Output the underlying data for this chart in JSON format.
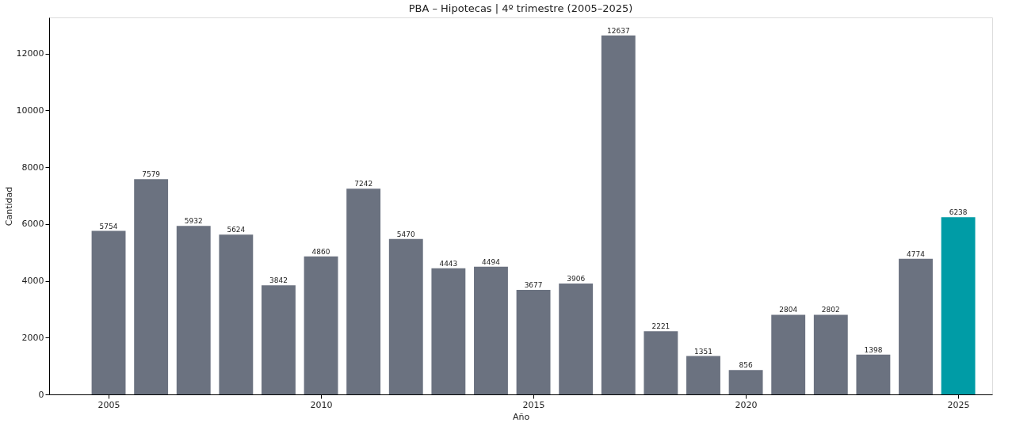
{
  "chart_data": {
    "type": "bar",
    "title": "PBA – Hipotecas | 4º trimestre (2005–2025)",
    "xlabel": "Año",
    "ylabel": "Cantidad",
    "x": [
      2005,
      2006,
      2007,
      2008,
      2009,
      2010,
      2011,
      2012,
      2013,
      2014,
      2015,
      2016,
      2017,
      2018,
      2019,
      2020,
      2021,
      2022,
      2023,
      2024,
      2025
    ],
    "values": [
      5754,
      7579,
      5932,
      5624,
      3842,
      4860,
      7242,
      5470,
      4443,
      4494,
      3677,
      3906,
      12637,
      2221,
      1351,
      856,
      2804,
      2802,
      1398,
      4774,
      6238
    ],
    "colors": [
      "#6b7280",
      "#6b7280",
      "#6b7280",
      "#6b7280",
      "#6b7280",
      "#6b7280",
      "#6b7280",
      "#6b7280",
      "#6b7280",
      "#6b7280",
      "#6b7280",
      "#6b7280",
      "#6b7280",
      "#6b7280",
      "#6b7280",
      "#6b7280",
      "#6b7280",
      "#6b7280",
      "#6b7280",
      "#6b7280",
      "#009ca6"
    ],
    "xlim": [
      2003.6,
      2025.8
    ],
    "xticks": [
      2005,
      2010,
      2015,
      2020,
      2025
    ],
    "ylim": [
      0,
      13270
    ],
    "yticks": [
      0,
      2000,
      4000,
      6000,
      8000,
      10000,
      12000
    ],
    "data_labels": true,
    "grid": false
  }
}
